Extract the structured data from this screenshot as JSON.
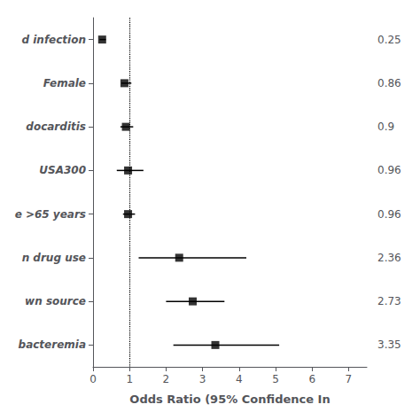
{
  "chart_data": {
    "type": "forest",
    "xlabel": "Odds Ratio (95% Confidence In",
    "categories": [
      "d infection",
      "Female",
      "docarditis",
      "USA300",
      "e >65 years",
      "n drug use",
      "wn source",
      "bacteremia"
    ],
    "values": [
      0.25,
      0.86,
      0.9,
      0.96,
      0.96,
      2.36,
      2.73,
      3.35
    ],
    "ci_lower": [
      0.18,
      0.78,
      0.75,
      0.65,
      0.82,
      1.25,
      2.0,
      2.2
    ],
    "ci_upper": [
      0.35,
      1.05,
      1.1,
      1.38,
      1.15,
      4.2,
      3.6,
      5.1
    ],
    "value_labels": [
      "0.25",
      "0.86",
      "0.9",
      "0.96",
      "0.96",
      "2.36",
      "2.73",
      "3.35"
    ],
    "data_labels": true,
    "xlim": [
      0,
      7.5
    ],
    "xticks": [
      0,
      1,
      2,
      3,
      4,
      5,
      6,
      7
    ],
    "ref_line": 1.0,
    "color": "#000000",
    "marker": "square",
    "grid": false
  }
}
